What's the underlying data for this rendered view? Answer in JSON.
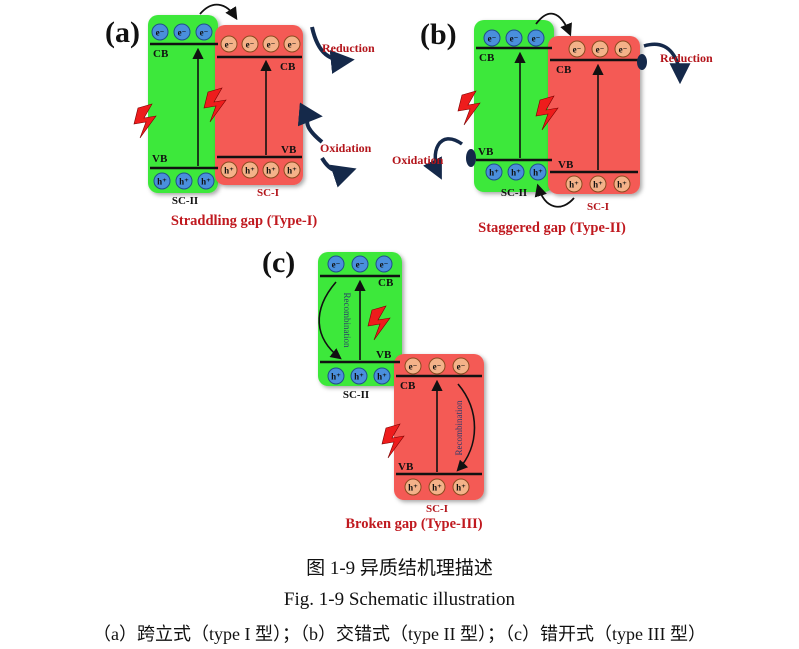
{
  "panels": {
    "a": {
      "letter": "(a)",
      "title": "Straddling gap (Type-I)",
      "sc_left": "SC-II",
      "sc_right": "SC-I",
      "reduction": "Reduction",
      "oxidation": "Oxidation"
    },
    "b": {
      "letter": "(b)",
      "title": "Staggered gap (Type-II)",
      "sc_left": "SC-II",
      "sc_right": "SC-I",
      "reduction": "Reduction",
      "oxidation": "Oxidation"
    },
    "c": {
      "letter": "(c)",
      "title": "Broken gap (Type-III)",
      "sc_left": "SC-II",
      "sc_right": "SC-I",
      "recombination": "Recombination"
    }
  },
  "labels": {
    "cb": "CB",
    "vb": "VB",
    "electron": "e⁻",
    "hole": "h⁺"
  },
  "captions": {
    "chinese": "图 1-9 异质结机理描述",
    "english": "Fig. 1-9 Schematic illustration",
    "subtitle": "（a）跨立式（type I 型）；（b）交错式（type II 型）；（c）错开式（type III 型）"
  },
  "colors": {
    "green": "#3ee83a",
    "red": "#f45a55",
    "electron_blue": "#4a8fdc",
    "hole_orange": "#f4b289",
    "title_red": "#c0191f",
    "label_red": "#b3141a",
    "arrow_dark": "#15294a"
  }
}
